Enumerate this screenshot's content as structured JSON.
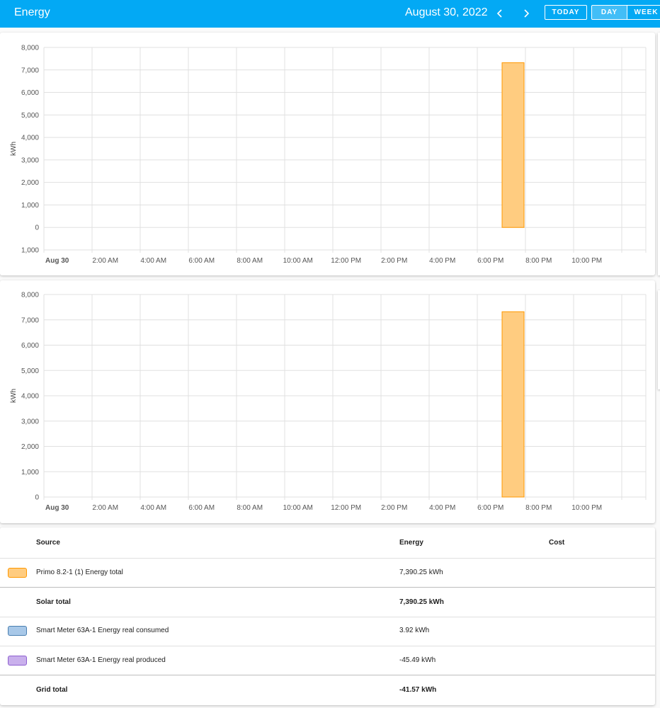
{
  "header": {
    "title": "Energy",
    "date": "August 30, 2022",
    "today_label": "TODAY",
    "day_label": "DAY",
    "week_label": "WEEK"
  },
  "chart_data": [
    {
      "type": "bar",
      "ylabel": "kWh",
      "ylim": [
        -1000,
        8000
      ],
      "yticks": [
        8000,
        7000,
        6000,
        5000,
        4000,
        3000,
        2000,
        1000,
        0,
        -1000
      ],
      "ytick_labels": [
        "8,000",
        "7,000",
        "6,000",
        "5,000",
        "4,000",
        "3,000",
        "2,000",
        "1,000",
        "0",
        "1,000"
      ],
      "xtick_labels": [
        "Aug 30",
        "2:00 AM",
        "4:00 AM",
        "6:00 AM",
        "8:00 AM",
        "10:00 AM",
        "12:00 PM",
        "2:00 PM",
        "4:00 PM",
        "6:00 PM",
        "8:00 PM",
        "10:00 PM"
      ],
      "series": [
        {
          "color": "#ff9800",
          "x_hours": [
            19
          ],
          "values": [
            7320
          ]
        }
      ],
      "grid": true
    },
    {
      "type": "bar",
      "ylabel": "kWh",
      "ylim": [
        0,
        8000
      ],
      "yticks": [
        8000,
        7000,
        6000,
        5000,
        4000,
        3000,
        2000,
        1000,
        0
      ],
      "ytick_labels": [
        "8,000",
        "7,000",
        "6,000",
        "5,000",
        "4,000",
        "3,000",
        "2,000",
        "1,000",
        "0"
      ],
      "xtick_labels": [
        "Aug 30",
        "2:00 AM",
        "4:00 AM",
        "6:00 AM",
        "8:00 AM",
        "10:00 AM",
        "12:00 PM",
        "2:00 PM",
        "4:00 PM",
        "6:00 PM",
        "8:00 PM",
        "10:00 PM"
      ],
      "series": [
        {
          "color": "#ff9800",
          "x_hours": [
            19
          ],
          "values": [
            7320
          ]
        }
      ],
      "grid": true
    }
  ],
  "table": {
    "headers": {
      "source": "Source",
      "energy": "Energy",
      "cost": "Cost"
    },
    "rows": [
      {
        "source": "Primo 8.2-1 (1) Energy total",
        "energy": "7,390.25 kWh",
        "swatch": "#ffcc80",
        "border": "#ff9800",
        "bold": false
      },
      {
        "source": "Solar total",
        "energy": "7,390.25 kWh",
        "bold": true
      },
      {
        "source": "Smart Meter 63A-1 Energy real consumed",
        "energy": "3.92 kWh",
        "swatch": "#a8c8e8",
        "border": "#4a7fb0",
        "bold": false
      },
      {
        "source": "Smart Meter 63A-1 Energy real produced",
        "energy": "-45.49 kWh",
        "swatch": "#c9b0ec",
        "border": "#8e5fd0",
        "bold": false
      },
      {
        "source": "Grid total",
        "energy": "-41.57 kWh",
        "bold": true
      }
    ]
  }
}
